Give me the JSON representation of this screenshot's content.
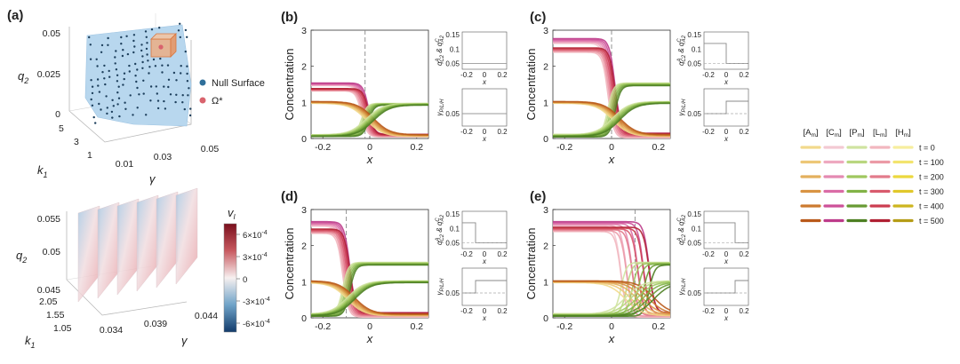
{
  "figure": {
    "panel_labels": [
      "(a)",
      "(b)",
      "(c)",
      "(d)",
      "(e)"
    ]
  },
  "panel_a": {
    "top_3d": {
      "axis_q2_label": "q",
      "axis_q2_sub": "2",
      "axis_k1_label": "k",
      "axis_k1_sub": "1",
      "axis_gamma_label": "γ",
      "q2_ticks": [
        "0.05",
        "0.025",
        "0"
      ],
      "k1_ticks": [
        "5",
        "3",
        "1"
      ],
      "gamma_ticks": [
        "0.01",
        "0.03",
        "0.05"
      ],
      "legend": [
        {
          "label": "Null Surface",
          "color": "#2f6f9a"
        },
        {
          "label": "Ω*",
          "color": "#d9636d"
        }
      ]
    },
    "bottom_3d": {
      "q2_ticks": [
        "0.055",
        "0.05",
        "0.045"
      ],
      "k1_ticks": [
        "2.05",
        "1.55",
        "1.05"
      ],
      "gamma_ticks": [
        "0.034",
        "0.039",
        "0.044"
      ],
      "colorbar": {
        "title": "v",
        "title_sub": "I",
        "ticks": [
          "6×10",
          "3×10",
          "0",
          "-3×10",
          "-6×10"
        ],
        "tick_exp": "-4",
        "colors": [
          "#7a0f1d",
          "#c85a60",
          "#f7f0f0",
          "#6fa3c8",
          "#123b6b"
        ]
      }
    }
  },
  "concentration_axes": {
    "ylabel": "Concentration",
    "xlabel": "x",
    "yticks": [
      "0",
      "1",
      "2",
      "3"
    ],
    "xticks": [
      "-0.2",
      "0",
      "0.2"
    ],
    "xlim": [
      -0.25,
      0.25
    ],
    "ylim": [
      0,
      3
    ]
  },
  "side_axes": {
    "top_ylabel": "q & q",
    "top_ylabel_parts": [
      "q",
      "A",
      "C2",
      " & q",
      "C",
      "A2"
    ],
    "top_yticks": [
      "0.15",
      "0.1",
      "0.05"
    ],
    "bottom_ylabel": "γ",
    "bottom_ylabel_sub": "P/L/H",
    "bottom_yticks": [
      "0.05"
    ],
    "xticks": [
      "-0.2",
      "0",
      "0.2"
    ],
    "xlabel": "x"
  },
  "legend_grid": {
    "columns": [
      "[A",
      "[C",
      "[P",
      "[L",
      "[H"
    ],
    "col_sub": "m",
    "rows": [
      "t = 0",
      "t = 100",
      "t = 200",
      "t = 300",
      "t = 400",
      "t = 500"
    ],
    "colors": [
      [
        "#f2d98c",
        "#f3c9d3",
        "#cfe3a0",
        "#f2b7bf",
        "#f6ee9e"
      ],
      [
        "#edc777",
        "#eea9c0",
        "#b9d67f",
        "#eb9aa6",
        "#f3e46e"
      ],
      [
        "#e3b05d",
        "#e48ab2",
        "#9fc75f",
        "#e27b8b",
        "#ecd83e"
      ],
      [
        "#d99443",
        "#da6ca6",
        "#82b347",
        "#d85b6d",
        "#e1c82b"
      ],
      [
        "#cc7a2f",
        "#cd5199",
        "#689a33",
        "#cc3d50",
        "#cdb51f"
      ],
      [
        "#b9591a",
        "#bd3b8a",
        "#4d7f22",
        "#b02032",
        "#b59c16"
      ]
    ]
  },
  "chart_data": [
    {
      "panel": "(b)",
      "type": "line",
      "xlabel": "x",
      "ylabel": "Concentration",
      "xlim": [
        -0.25,
        0.25
      ],
      "ylim": [
        0,
        3
      ],
      "interface_x": -0.02,
      "series_summary": [
        {
          "group": "high-left curves",
          "left": 1.5,
          "right": 0.08
        },
        {
          "group": "high-left curves",
          "left": 1.35,
          "right": 0.08
        },
        {
          "group": "high-right curves",
          "left": 0.08,
          "right": 0.95
        },
        {
          "group": "decaying curves",
          "left": 1.0,
          "right": 0.08
        },
        {
          "group": "rising curves",
          "left": 0.08,
          "right": 0.95
        }
      ],
      "side_q": {
        "left": 0.05,
        "right": 0.05
      },
      "side_gamma": {
        "left": 0.05,
        "right": 0.05
      }
    },
    {
      "panel": "(c)",
      "type": "line",
      "xlabel": "x",
      "ylabel": "Concentration",
      "xlim": [
        -0.25,
        0.25
      ],
      "ylim": [
        0,
        3
      ],
      "interface_x": 0.0,
      "series_summary": [
        {
          "group": "high-left curves",
          "left": 2.7,
          "right": 0.08
        },
        {
          "group": "high-left curves",
          "left": 2.45,
          "right": 0.08
        },
        {
          "group": "high-right curves",
          "left": 0.08,
          "right": 1.5
        },
        {
          "group": "decaying curves",
          "left": 1.0,
          "right": 0.08
        },
        {
          "group": "rising curves",
          "left": 0.08,
          "right": 1.0
        }
      ],
      "side_q": {
        "left": 0.12,
        "right": 0.05
      },
      "side_gamma": {
        "left": 0.05,
        "right": 0.07
      }
    },
    {
      "panel": "(d)",
      "type": "line",
      "xlabel": "x",
      "ylabel": "Concentration",
      "xlim": [
        -0.25,
        0.25
      ],
      "ylim": [
        0,
        3
      ],
      "interface_x": -0.1,
      "series_summary": [
        {
          "group": "high-left curves",
          "left": 2.6,
          "right": 0.08
        },
        {
          "group": "high-left curves",
          "left": 2.4,
          "right": 0.08
        },
        {
          "group": "high-right curves",
          "left": 0.08,
          "right": 1.5
        },
        {
          "group": "decaying curves",
          "left": 1.0,
          "right": 0.08
        },
        {
          "group": "rising curves",
          "left": 0.08,
          "right": 1.0
        }
      ],
      "side_q": {
        "left": 0.12,
        "right": 0.05
      },
      "side_gamma": {
        "left": 0.05,
        "right": 0.07
      }
    },
    {
      "panel": "(e)",
      "type": "line",
      "xlabel": "x",
      "ylabel": "Concentration",
      "xlim": [
        -0.25,
        0.25
      ],
      "ylim": [
        0,
        3
      ],
      "interface_x": 0.1,
      "series_summary": [
        {
          "group": "high-left curves",
          "left": 2.6,
          "right": 0.08
        },
        {
          "group": "high-left curves",
          "left": 2.45,
          "right": 0.08
        },
        {
          "group": "high-right curves",
          "left": 0.08,
          "right": 1.5
        },
        {
          "group": "decaying curves",
          "left": 1.0,
          "right": 0.08
        },
        {
          "group": "rising curves",
          "left": 0.08,
          "right": 1.0
        }
      ],
      "side_q": {
        "left": 0.12,
        "right": 0.05
      },
      "side_gamma": {
        "left": 0.05,
        "right": 0.07
      }
    }
  ]
}
